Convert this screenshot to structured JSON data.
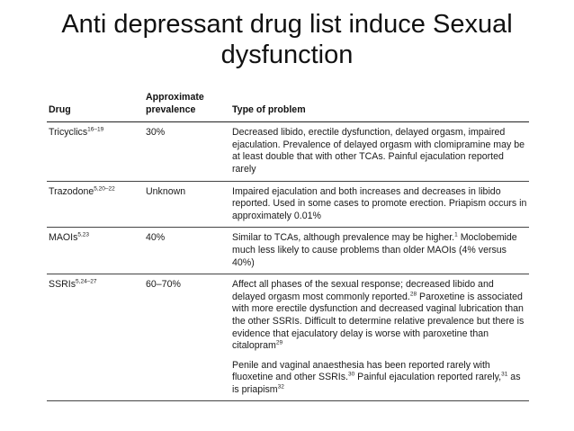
{
  "slide": {
    "title_line1": "Anti depressant drug list induce Sexual",
    "title_line2": "dysfunction"
  },
  "table": {
    "headers": {
      "drug": "Drug",
      "prevalence_line1": "Approximate",
      "prevalence_line2": "prevalence",
      "problem": "Type of problem"
    },
    "rows": [
      {
        "drug": "Tricyclics",
        "drug_ref": "16–19",
        "prevalence": "30%",
        "p1": "Decreased libido, erectile dysfunction, delayed orgasm, impaired ejaculation. Prevalence of delayed orgasm with clomipramine may be at least double that with other TCAs. Painful ejaculation reported rarely"
      },
      {
        "drug": "Trazodone",
        "drug_ref": "5,20–22",
        "prevalence": "Unknown",
        "p1": "Impaired ejaculation and both increases and decreases in libido reported. Used in some cases to promote erection. Priapism occurs in approximately 0.01%"
      },
      {
        "drug": "MAOIs",
        "drug_ref": "5,23",
        "prevalence": "40%",
        "p1a": "Similar to TCAs, although prevalence may be higher.",
        "p1a_ref": "1",
        "p1b": " Moclobemide much less likely to cause problems than older MAOIs (4% versus 40%)"
      },
      {
        "drug": "SSRIs",
        "drug_ref": "5,24–27",
        "prevalence": "60–70%",
        "p1a": "Affect all phases of the sexual response; decreased libido and delayed orgasm most commonly reported.",
        "p1a_ref": "28",
        "p1b": " Paroxetine is associated with more erectile dysfunction and decreased vaginal lubrication than the other SSRIs. Difficult to determine relative prevalence but there is evidence that ejaculatory delay is worse with paroxetine than citalopram",
        "p1b_ref": "29",
        "p2a": "Penile and vaginal anaesthesia has been reported rarely with fluoxetine and other SSRIs.",
        "p2a_ref": "30",
        "p2b": " Painful ejaculation reported rarely,",
        "p2b_ref": "31",
        "p2c": " as is priapism",
        "p2c_ref": "32"
      }
    ]
  }
}
